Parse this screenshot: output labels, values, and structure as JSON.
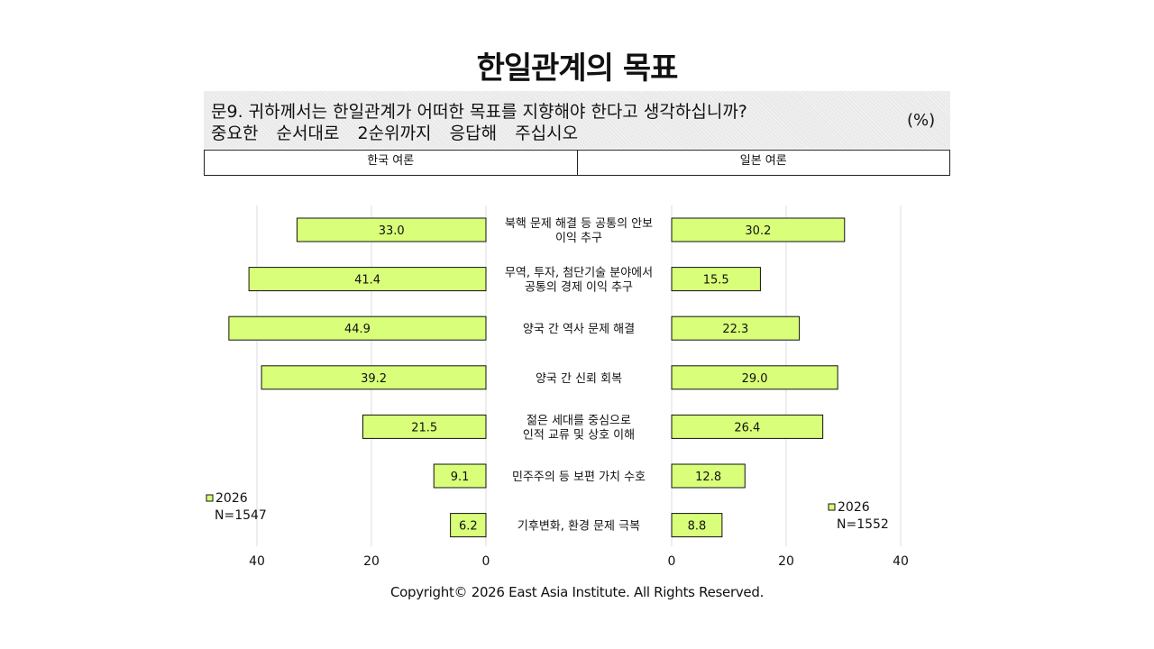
{
  "title": "한일관계의 목표",
  "question": {
    "line1": "문9. 귀하께서는 한일관계가 어떠한 목표를 지향해야 한다고 생각하십니까?",
    "line2": "중요한  순서대로  2순위까지  응답해  주십시오",
    "unit": "(%)"
  },
  "headers": {
    "left": "한국 여론",
    "right": "일본 여론"
  },
  "footer": "Copyright© 2026 East Asia Institute. All Rights Reserved.",
  "colors": {
    "bar_fill": "#d9ff7a",
    "bar_stroke": "#111111",
    "grid": "#dddddd"
  },
  "chart_data": {
    "type": "bar",
    "orientation": "horizontal-butterfly",
    "categories": [
      [
        "북핵 문제 해결 등 공통의  안보",
        "이익 추구"
      ],
      [
        "무역, 투자, 첨단기술 분야에서",
        "공통의 경제 이익 추구"
      ],
      [
        "양국 간 역사 문제 해결"
      ],
      [
        "양국 간 신뢰 회복"
      ],
      [
        "젊은 세대를 중심으로",
        "인적 교류 및 상호 이해"
      ],
      [
        "민주주의 등 보편 가치 수호"
      ],
      [
        "기후변화, 환경 문제 극복"
      ]
    ],
    "series": [
      {
        "name": "2026",
        "side": "left",
        "legend_lines": [
          "2026",
          "N=1547"
        ],
        "values": [
          33.0,
          41.4,
          44.9,
          39.2,
          21.5,
          9.1,
          6.2
        ]
      },
      {
        "name": "2026",
        "side": "right",
        "legend_lines": [
          "2026",
          "N=1552"
        ],
        "values": [
          30.2,
          15.5,
          22.3,
          29.0,
          26.4,
          12.8,
          8.8
        ]
      }
    ],
    "xlim": [
      0,
      40
    ],
    "xticks": [
      0,
      20,
      40
    ],
    "grid": true
  }
}
